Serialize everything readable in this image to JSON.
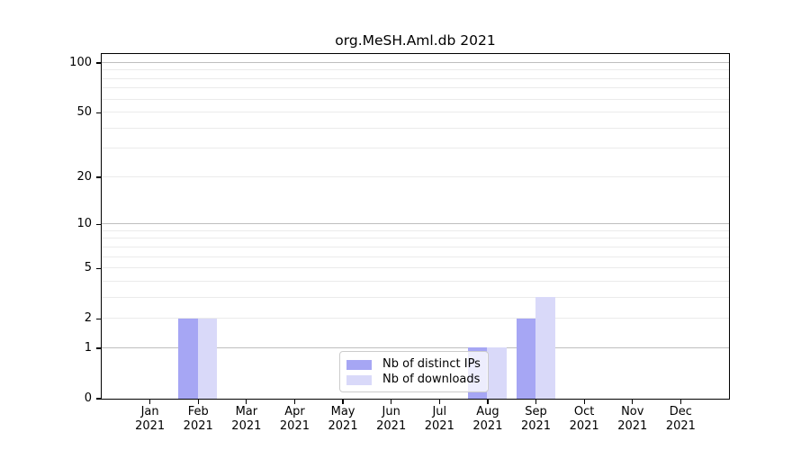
{
  "title": "org.MeSH.Aml.db 2021",
  "chart_data": {
    "type": "bar",
    "title": "org.MeSH.Aml.db 2021",
    "categories": [
      "Jan",
      "Feb",
      "Mar",
      "Apr",
      "May",
      "Jun",
      "Jul",
      "Aug",
      "Sep",
      "Oct",
      "Nov",
      "Dec"
    ],
    "year_label": "2021",
    "series": [
      {
        "name": "Nb of distinct IPs",
        "color": "#a6a6f4",
        "values": [
          0,
          2,
          0,
          0,
          0,
          0,
          0,
          1,
          2,
          0,
          0,
          0
        ]
      },
      {
        "name": "Nb of downloads",
        "color": "#d9d9f9",
        "values": [
          0,
          2,
          0,
          0,
          0,
          0,
          0,
          1,
          3,
          0,
          0,
          0
        ]
      }
    ],
    "xlabel": "",
    "ylabel": "",
    "y_scale": "log1p",
    "y_ticks": [
      0,
      1,
      2,
      5,
      10,
      20,
      50,
      100
    ],
    "y_major_grid": [
      1,
      10,
      100
    ],
    "y_minor_grid": [
      2,
      3,
      4,
      5,
      6,
      7,
      8,
      9,
      20,
      30,
      40,
      50,
      60,
      70,
      80,
      90
    ],
    "ylim": [
      0,
      113
    ],
    "grid": true,
    "legend_position": "bottom-center",
    "colors": {
      "grid_major": "#bfbfbf",
      "grid_minor": "#ebebeb",
      "axis": "#000000",
      "text": "#000000",
      "legend_border": "#cccccc"
    }
  }
}
